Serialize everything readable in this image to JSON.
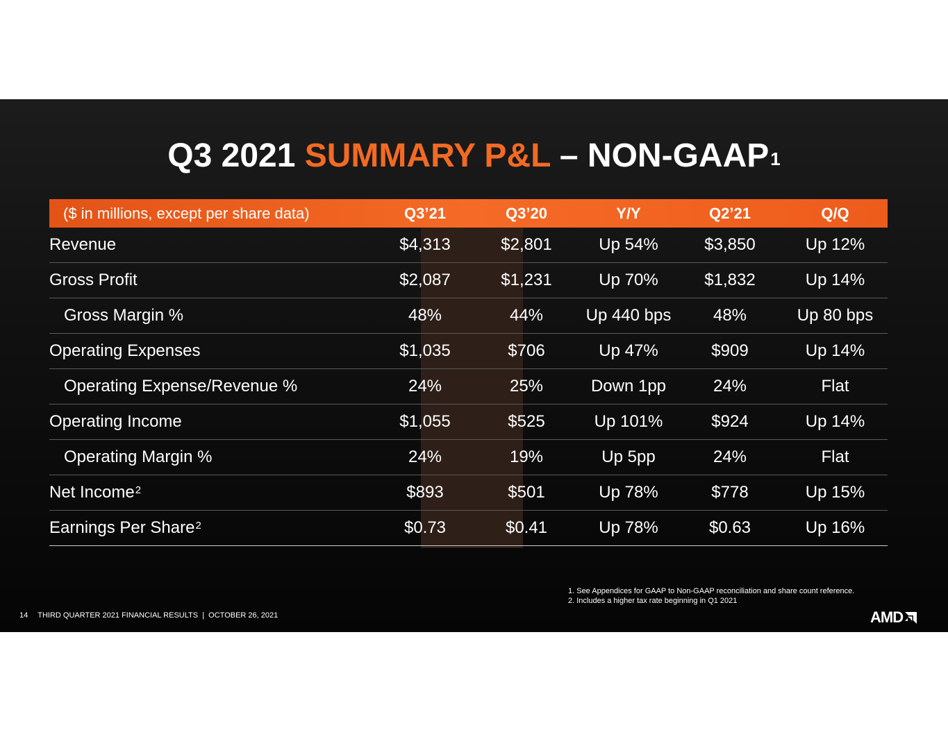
{
  "title": {
    "part1": "Q3 2021 ",
    "accent": "SUMMARY P&L",
    "part2": " – NON-GAAP",
    "sup": "1"
  },
  "table": {
    "header": {
      "label": "($ in millions, except per share data)",
      "cols": [
        "Q3’21",
        "Q3’20",
        "Y/Y",
        "Q2’21",
        "Q/Q"
      ]
    },
    "rows": [
      {
        "label": "Revenue",
        "sup": "",
        "values": [
          "$4,313",
          "$2,801",
          "Up 54%",
          "$3,850",
          "Up 12%"
        ]
      },
      {
        "label": "Gross Profit",
        "sup": "",
        "values": [
          "$2,087",
          "$1,231",
          "Up 70%",
          "$1,832",
          "Up 14%"
        ]
      },
      {
        "label": "Gross Margin %",
        "sup": "",
        "values": [
          "48%",
          "44%",
          "Up 440 bps",
          "48%",
          "Up 80 bps"
        ]
      },
      {
        "label": "Operating Expenses",
        "sup": "",
        "values": [
          "$1,035",
          "$706",
          "Up 47%",
          "$909",
          "Up 14%"
        ]
      },
      {
        "label": "Operating Expense/Revenue %",
        "sup": "",
        "values": [
          "24%",
          "25%",
          "Down 1pp",
          "24%",
          "Flat"
        ]
      },
      {
        "label": "Operating Income",
        "sup": "",
        "values": [
          "$1,055",
          "$525",
          "Up 101%",
          "$924",
          "Up 14%"
        ]
      },
      {
        "label": "Operating Margin %",
        "sup": "",
        "values": [
          "24%",
          "19%",
          "Up 5pp",
          "24%",
          "Flat"
        ]
      },
      {
        "label": "Net Income",
        "sup": "2",
        "values": [
          "$893",
          "$501",
          "Up 78%",
          "$778",
          "Up 15%"
        ]
      },
      {
        "label": "Earnings Per Share",
        "sup": "2",
        "values": [
          "$0.73",
          "$0.41",
          "Up 78%",
          "$0.63",
          "Up 16%"
        ]
      }
    ]
  },
  "footnotes": [
    "1. See Appendices for GAAP to Non-GAAP reconciliation and share count reference.",
    "2. Includes a higher tax rate beginning in Q1 2021"
  ],
  "footer": {
    "page_number": "14",
    "text": "THIRD QUARTER 2021 FINANCIAL RESULTS  |  OCTOBER 26, 2021"
  },
  "logo": {
    "text": "AMD",
    "icon": "amd-arrow-icon"
  }
}
